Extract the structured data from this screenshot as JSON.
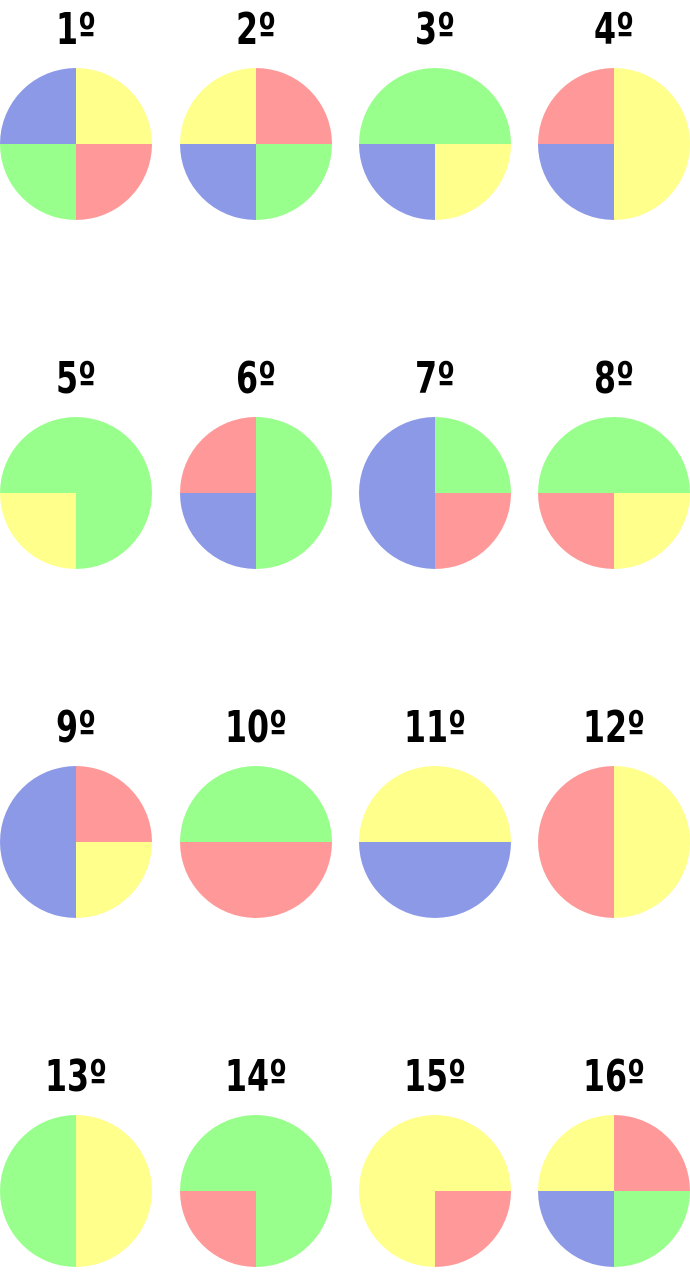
{
  "colors": {
    "red": "#ff9999",
    "yellow": "#ffff8c",
    "green": "#99ff8c",
    "blue": "#8c99e6"
  },
  "quadrant_order": [
    "top-left",
    "top-right",
    "bottom-left",
    "bottom-right"
  ],
  "circles": [
    {
      "label": "1º",
      "quadrants": [
        "blue",
        "yellow",
        "green",
        "red"
      ]
    },
    {
      "label": "2º",
      "quadrants": [
        "yellow",
        "red",
        "blue",
        "green"
      ]
    },
    {
      "label": "3º",
      "quadrants": [
        "green",
        "green",
        "blue",
        "yellow"
      ]
    },
    {
      "label": "4º",
      "quadrants": [
        "red",
        "yellow",
        "blue",
        "yellow"
      ]
    },
    {
      "label": "5º",
      "quadrants": [
        "green",
        "green",
        "yellow",
        "green"
      ]
    },
    {
      "label": "6º",
      "quadrants": [
        "red",
        "green",
        "blue",
        "green"
      ]
    },
    {
      "label": "7º",
      "quadrants": [
        "blue",
        "green",
        "blue",
        "red"
      ]
    },
    {
      "label": "8º",
      "quadrants": [
        "green",
        "green",
        "red",
        "yellow"
      ]
    },
    {
      "label": "9º",
      "quadrants": [
        "blue",
        "red",
        "blue",
        "yellow"
      ]
    },
    {
      "label": "10º",
      "quadrants": [
        "green",
        "green",
        "red",
        "red"
      ]
    },
    {
      "label": "11º",
      "quadrants": [
        "yellow",
        "yellow",
        "blue",
        "blue"
      ]
    },
    {
      "label": "12º",
      "quadrants": [
        "red",
        "yellow",
        "red",
        "yellow"
      ]
    },
    {
      "label": "13º",
      "quadrants": [
        "green",
        "yellow",
        "green",
        "yellow"
      ]
    },
    {
      "label": "14º",
      "quadrants": [
        "green",
        "green",
        "red",
        "green"
      ]
    },
    {
      "label": "15º",
      "quadrants": [
        "yellow",
        "yellow",
        "yellow",
        "red"
      ]
    },
    {
      "label": "16º",
      "quadrants": [
        "yellow",
        "red",
        "blue",
        "green"
      ]
    }
  ]
}
